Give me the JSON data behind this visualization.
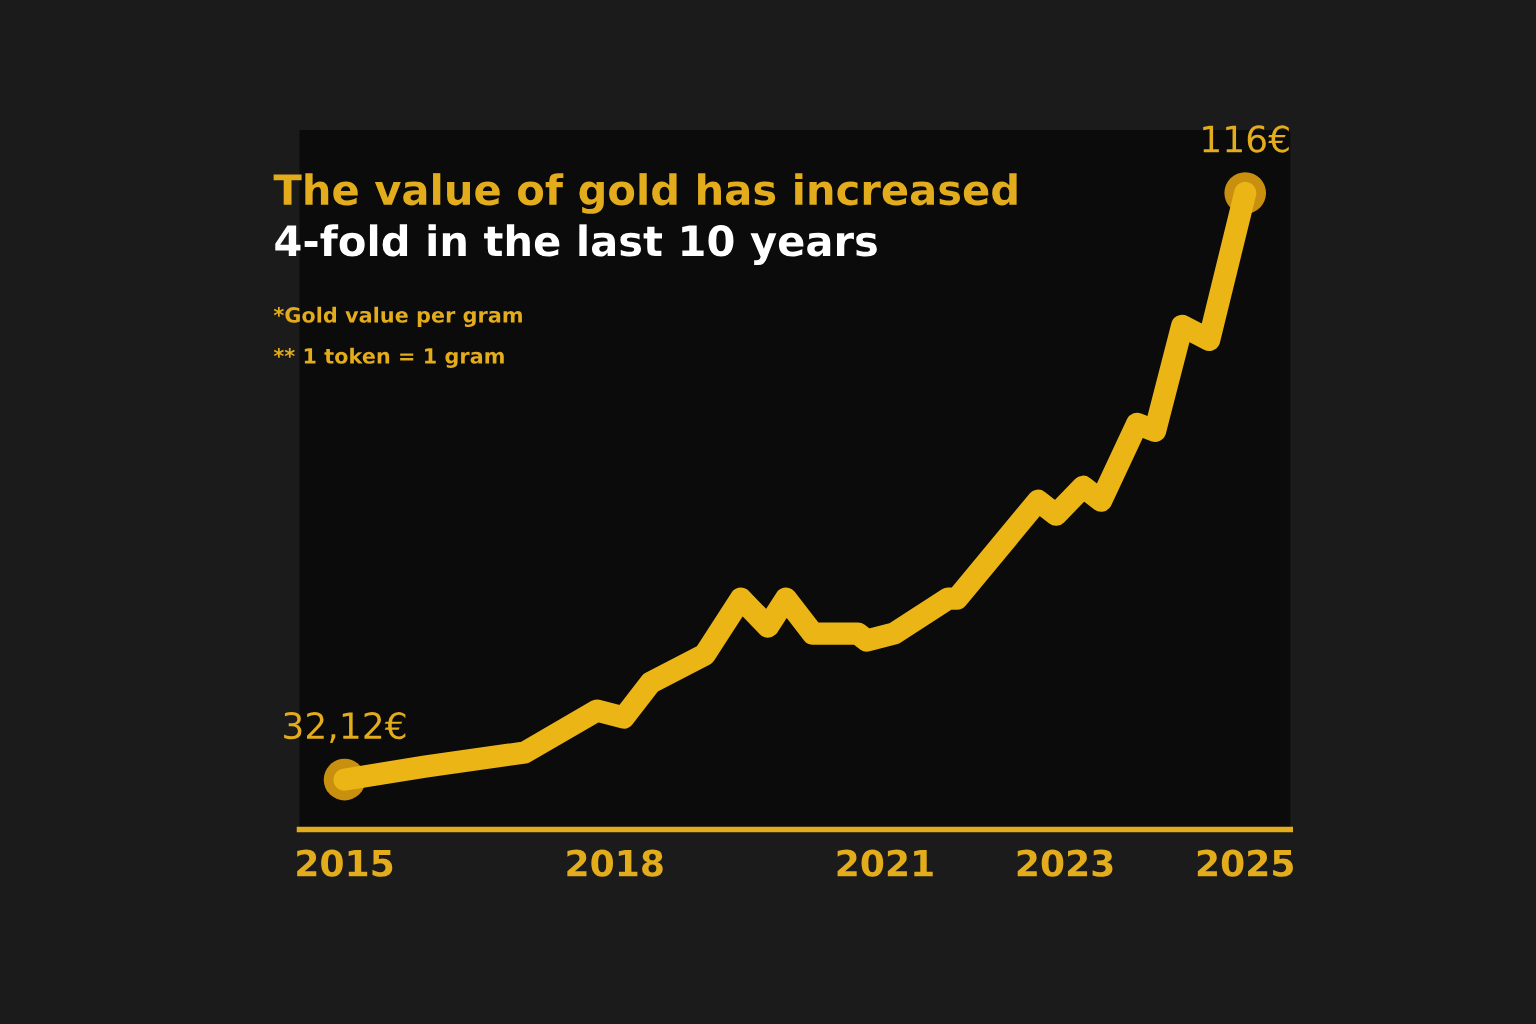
{
  "chart_data": {
    "type": "line",
    "title": "The value of gold has increased",
    "subtitle": "4-fold in the last 10 years",
    "annotations": [
      "*Gold value per gram",
      "** 1 token = 1 gram"
    ],
    "x": [
      2015.0,
      2015.9,
      2017.0,
      2017.8,
      2018.1,
      2018.4,
      2019.0,
      2019.4,
      2019.7,
      2019.9,
      2020.2,
      2020.7,
      2020.8,
      2021.1,
      2021.7,
      2021.8,
      2022.7,
      2022.9,
      2023.2,
      2023.4,
      2023.8,
      2024.0,
      2024.3,
      2024.6,
      2025.0
    ],
    "series": [
      {
        "color": "#ebb516",
        "values": [
          32.12,
          34,
          36,
          42,
          41,
          46,
          50,
          58,
          54,
          58,
          53,
          53,
          52,
          53,
          58,
          58,
          72,
          70,
          74,
          72,
          83,
          82,
          97,
          95,
          116
        ]
      },
      {
        "type": "scatter",
        "color": "#c98f0e",
        "x": [
          2015.0,
          2025.0
        ],
        "values": [
          32.12,
          116
        ],
        "value_labels": [
          "32,12€",
          "116€"
        ]
      }
    ],
    "xlim": [
      2014.5,
      2025.5
    ],
    "xticks": [
      2015,
      2018,
      2021,
      2023,
      2025
    ],
    "ylim": [
      25,
      125
    ],
    "tick_labels": "x",
    "line_style": "solid"
  }
}
